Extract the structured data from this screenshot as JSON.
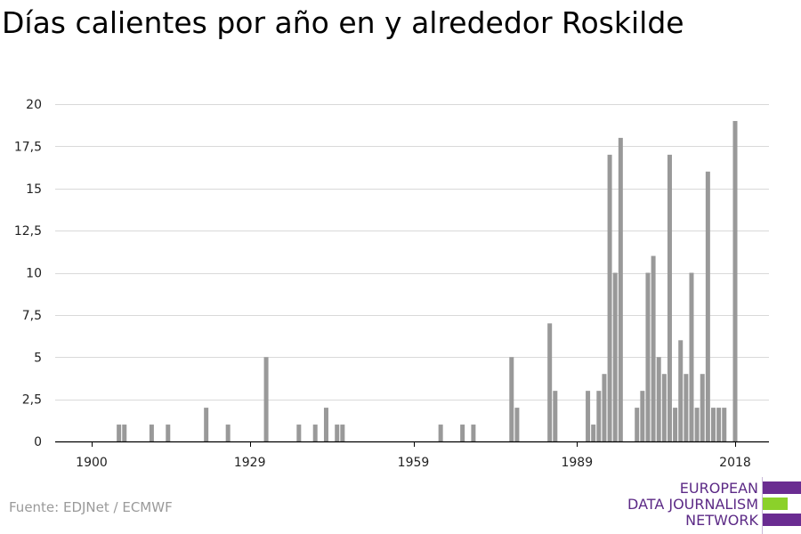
{
  "title": "Días calientes por año en y alrededor Roskilde",
  "source": "Fuente: EDJNet / ECMWF",
  "logo": {
    "lines": [
      "EUROPEAN",
      "DATA JOURNALISM",
      "NETWORK"
    ],
    "colors": {
      "purple": "#6a2c91",
      "green": "#8bd12a"
    }
  },
  "colors": {
    "bar": "#999999",
    "grid": "#d9d9d9",
    "axis": "#000000"
  },
  "chart_data": {
    "type": "bar",
    "title": "Días calientes por año en y alrededor Roskilde",
    "xlabel": "",
    "ylabel": "",
    "xlim": [
      1900,
      2018
    ],
    "ylim": [
      0,
      20
    ],
    "x_ticks": [
      1900,
      1929,
      1959,
      1989,
      2018
    ],
    "y_ticks": [
      0,
      2.5,
      5,
      7.5,
      10,
      12.5,
      15,
      17.5,
      20
    ],
    "y_tick_labels": [
      "0",
      "2,5",
      "5",
      "7,5",
      "10",
      "12,5",
      "15",
      "17,5",
      "20"
    ],
    "grid": true,
    "x": [
      1905,
      1906,
      1911,
      1914,
      1921,
      1925,
      1932,
      1938,
      1941,
      1943,
      1945,
      1946,
      1964,
      1968,
      1970,
      1977,
      1978,
      1984,
      1985,
      1991,
      1992,
      1993,
      1994,
      1995,
      1996,
      1997,
      2000,
      2001,
      2002,
      2003,
      2004,
      2005,
      2006,
      2007,
      2008,
      2009,
      2010,
      2011,
      2012,
      2013,
      2014,
      2015,
      2016,
      2018
    ],
    "values": [
      1,
      1,
      1,
      1,
      2,
      1,
      5,
      1,
      1,
      2,
      1,
      1,
      1,
      1,
      1,
      5,
      2,
      7,
      3,
      3,
      1,
      3,
      4,
      17,
      10,
      18,
      2,
      3,
      10,
      11,
      5,
      4,
      17,
      2,
      6,
      4,
      10,
      2,
      4,
      16,
      2,
      2,
      2,
      19
    ]
  }
}
